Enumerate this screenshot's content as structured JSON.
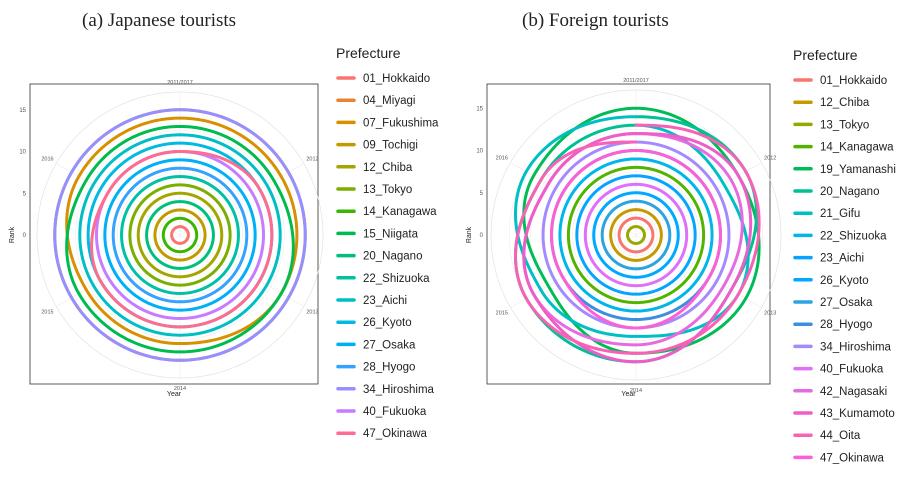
{
  "panels": [
    {
      "title": "(a) Japanese tourists"
    },
    {
      "title": "(b) Foreign tourists"
    }
  ],
  "chart_data": [
    {
      "type": "line",
      "coord": "polar",
      "title": "(a) Japanese tourists",
      "xlabel": "Year",
      "ylabel": "Rank",
      "angle_ticks": [
        "2011/2017",
        "2012",
        "2013",
        "2014",
        "2015",
        "2016"
      ],
      "rank_ticks": [
        0,
        5,
        10,
        15
      ],
      "rlim": [
        0,
        17
      ],
      "grid": true,
      "legend_title": "Prefecture",
      "legend_position": "right",
      "x": [
        "2011",
        "2012",
        "2013",
        "2014",
        "2015",
        "2016",
        "2017"
      ],
      "series": [
        {
          "name": "01_Hokkaido",
          "color": "#F8766D",
          "values": [
            1,
            1,
            1,
            1,
            1,
            1,
            1
          ]
        },
        {
          "name": "04_Miyagi",
          "color": "#EA8331",
          "values": [
            15,
            15,
            15,
            15,
            15,
            15,
            15
          ]
        },
        {
          "name": "07_Fukushima",
          "color": "#D89000",
          "values": [
            14,
            14,
            14,
            13,
            13,
            14,
            14
          ]
        },
        {
          "name": "09_Tochigi",
          "color": "#C09B00",
          "values": [
            3,
            3,
            3,
            3,
            3,
            3,
            3
          ]
        },
        {
          "name": "12_Chiba",
          "color": "#A3A500",
          "values": [
            5,
            5,
            5,
            5,
            5,
            5,
            5
          ]
        },
        {
          "name": "13_Tokyo",
          "color": "#7CAE00",
          "values": [
            6,
            6,
            6,
            6,
            6,
            6,
            6
          ]
        },
        {
          "name": "14_Kanagawa",
          "color": "#39B600",
          "values": [
            2,
            2,
            2,
            2,
            2,
            2,
            2
          ]
        },
        {
          "name": "15_Niigata",
          "color": "#00BB4E",
          "values": [
            13,
            13,
            14,
            14,
            14,
            13,
            13
          ]
        },
        {
          "name": "20_Nagano",
          "color": "#00BF7D",
          "values": [
            4,
            4,
            4,
            4,
            4,
            4,
            4
          ]
        },
        {
          "name": "22_Shizuoka",
          "color": "#00C1A3",
          "values": [
            7,
            7,
            7,
            7,
            7,
            7,
            7
          ]
        },
        {
          "name": "23_Aichi",
          "color": "#00BFC4",
          "values": [
            12,
            12,
            12,
            12,
            12,
            12,
            12
          ]
        },
        {
          "name": "26_Kyoto",
          "color": "#00BAE0",
          "values": [
            11,
            11,
            11,
            11,
            11,
            11,
            11
          ]
        },
        {
          "name": "27_Osaka",
          "color": "#00B0F6",
          "values": [
            9,
            9,
            9,
            9,
            9,
            9,
            9
          ]
        },
        {
          "name": "28_Hyogo",
          "color": "#35A2FF",
          "values": [
            8,
            8,
            8,
            8,
            8,
            8,
            8
          ]
        },
        {
          "name": "34_Hiroshima",
          "color": "#9590FF",
          "values": [
            15,
            15,
            15,
            15,
            15,
            15,
            15
          ]
        },
        {
          "name": "40_Fukuoka",
          "color": "#C77CFF",
          "values": [
            10,
            10,
            10,
            10,
            10,
            10,
            10
          ]
        },
        {
          "name": "47_Okinawa",
          "color": "#FF6C91",
          "values": [
            10,
            11,
            11,
            11,
            11,
            10,
            10
          ]
        }
      ]
    },
    {
      "type": "line",
      "coord": "polar",
      "title": "(b) Foreign tourists",
      "xlabel": "Year",
      "ylabel": "Rank",
      "angle_ticks": [
        "2011/2017",
        "2012",
        "2013",
        "2014",
        "2015",
        "2016"
      ],
      "rank_ticks": [
        0,
        5,
        10,
        15
      ],
      "rlim": [
        0,
        17
      ],
      "grid": true,
      "legend_title": "Prefecture",
      "legend_position": "right",
      "x": [
        "2011",
        "2012",
        "2013",
        "2014",
        "2015",
        "2016",
        "2017"
      ],
      "series": [
        {
          "name": "01_Hokkaido",
          "color": "#F8766D",
          "values": [
            2,
            2,
            2,
            2,
            2,
            2,
            2
          ]
        },
        {
          "name": "12_Chiba",
          "color": "#C49A00",
          "values": [
            3,
            3,
            3,
            3,
            3,
            3,
            3
          ]
        },
        {
          "name": "13_Tokyo",
          "color": "#99A800",
          "values": [
            1,
            1,
            1,
            1,
            1,
            1,
            1
          ]
        },
        {
          "name": "14_Kanagawa",
          "color": "#53B400",
          "values": [
            8,
            8,
            8,
            8,
            8,
            8,
            8
          ]
        },
        {
          "name": "19_Yamanashi",
          "color": "#00BC56",
          "values": [
            15,
            14,
            15,
            14,
            12,
            14,
            15
          ]
        },
        {
          "name": "20_Nagano",
          "color": "#00C094",
          "values": [
            14,
            15,
            13,
            15,
            15,
            13,
            13
          ]
        },
        {
          "name": "21_Gifu",
          "color": "#00BFC4",
          "values": [
            13,
            12,
            14,
            12,
            13,
            15,
            14
          ]
        },
        {
          "name": "22_Shizuoka",
          "color": "#00B6EB",
          "values": [
            9,
            9,
            9,
            9,
            9,
            9,
            9
          ]
        },
        {
          "name": "23_Aichi",
          "color": "#06A4FF",
          "values": [
            7,
            7,
            7,
            7,
            7,
            7,
            7
          ]
        },
        {
          "name": "26_Kyoto",
          "color": "#00A9FF",
          "values": [
            5,
            5,
            5,
            5,
            5,
            5,
            5
          ]
        },
        {
          "name": "27_Osaka",
          "color": "#2DA3E0",
          "values": [
            4,
            4,
            4,
            4,
            4,
            4,
            4
          ]
        },
        {
          "name": "28_Hyogo",
          "color": "#3C8FE0",
          "values": [
            10,
            10,
            10,
            10,
            10,
            10,
            10
          ]
        },
        {
          "name": "34_Hiroshima",
          "color": "#A58AFF",
          "values": [
            11,
            11,
            11,
            11,
            11,
            11,
            11
          ]
        },
        {
          "name": "40_Fukuoka",
          "color": "#DF70F8",
          "values": [
            6,
            6,
            6,
            6,
            6,
            6,
            6
          ]
        },
        {
          "name": "42_Nagasaki",
          "color": "#E76BE0",
          "values": [
            12,
            13,
            12,
            13,
            14,
            12,
            12
          ]
        },
        {
          "name": "43_Kumamoto",
          "color": "#F05CC8",
          "values": [
            12,
            14,
            13,
            15,
            14,
            12,
            12
          ]
        },
        {
          "name": "44_Oita",
          "color": "#F862B5",
          "values": [
            13,
            15,
            14,
            14,
            15,
            13,
            11
          ]
        },
        {
          "name": "47_Okinawa",
          "color": "#FB61D7",
          "values": [
            10,
            10,
            10,
            11,
            10,
            10,
            10
          ]
        }
      ]
    }
  ]
}
